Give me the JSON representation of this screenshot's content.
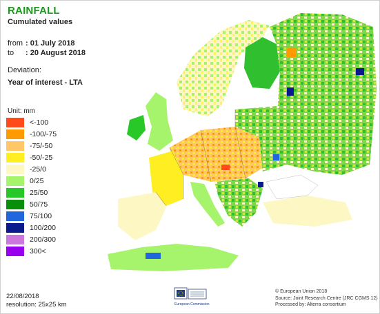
{
  "header": {
    "title": "RAINFALL",
    "subtitle": "Cumulated values",
    "from_label": "from",
    "from_value": ": 01 July 2018",
    "to_label": "to",
    "to_value": ": 20 August 2018",
    "deviation_label": "Deviation:",
    "year_of_interest": "Year of interest - LTA"
  },
  "legend": {
    "unit": "Unit:  mm",
    "classes": [
      {
        "label": "<-100",
        "color": "#ff4a1a"
      },
      {
        "label": "-100/-75",
        "color": "#ff9a00"
      },
      {
        "label": "-75/-50",
        "color": "#ffc766"
      },
      {
        "label": "-50/-25",
        "color": "#ffee22"
      },
      {
        "label": "-25/0",
        "color": "#fdf7c4"
      },
      {
        "label": "0/25",
        "color": "#a6f36c"
      },
      {
        "label": "25/50",
        "color": "#28c828"
      },
      {
        "label": "50/75",
        "color": "#0a8f0a"
      },
      {
        "label": "75/100",
        "color": "#2266dd"
      },
      {
        "label": "100/200",
        "color": "#0a1a8c"
      },
      {
        "label": "200/300",
        "color": "#cc77dd"
      },
      {
        "label": "300<",
        "color": "#9900ee"
      }
    ]
  },
  "footer": {
    "date": "22/08/2018",
    "resolution": "resolution: 25x25 km",
    "copyright": "© European Union 2018",
    "source": "Source: Joint Research Centre (JRC CGMS 12)",
    "processed": "Processed by: Alterra consortium",
    "eu_logo_text": "European Commission"
  }
}
